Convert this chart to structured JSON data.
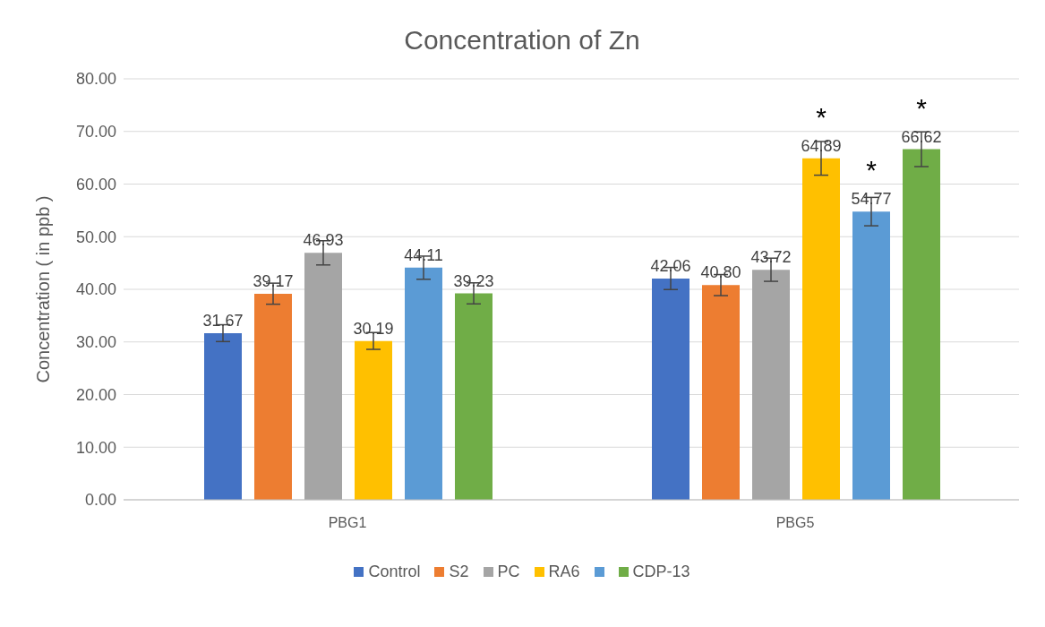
{
  "chart_data": {
    "type": "bar",
    "title": "Concentration of Zn",
    "ylabel": "Concentration ( in ppb )",
    "categories": [
      "PBG1",
      "PBG5"
    ],
    "series": [
      {
        "name": "Control",
        "color": "#4472c4",
        "values": [
          31.67,
          42.06
        ],
        "errors": [
          1.6,
          2.1
        ],
        "value_labels": [
          "31.67",
          "42.06"
        ]
      },
      {
        "name": "S2",
        "color": "#ed7d31",
        "values": [
          39.17,
          40.8
        ],
        "errors": [
          2.0,
          2.0
        ],
        "value_labels": [
          "39.17",
          "40.80"
        ]
      },
      {
        "name": "PC",
        "color": "#a5a5a5",
        "values": [
          46.93,
          43.72
        ],
        "errors": [
          2.3,
          2.2
        ],
        "value_labels": [
          "46.93",
          "43.72"
        ]
      },
      {
        "name": "RA6",
        "color": "#ffc000",
        "values": [
          30.19,
          64.89
        ],
        "errors": [
          1.6,
          3.2
        ],
        "value_labels": [
          "30.19",
          "64.89"
        ]
      },
      {
        "color": "#5b9bd5",
        "values": [
          44.11,
          54.77
        ],
        "errors": [
          2.2,
          2.7
        ],
        "value_labels": [
          "44.11",
          "54.77"
        ]
      },
      {
        "name": "CDP-13",
        "color": "#70ad47",
        "values": [
          39.23,
          66.62
        ],
        "errors": [
          2.0,
          3.3
        ],
        "value_labels": [
          "39.23",
          "66.62"
        ]
      }
    ],
    "ylim": [
      0,
      80
    ],
    "yticks": [
      {
        "value": 0,
        "label": "0.00"
      },
      {
        "value": 10,
        "label": "10.00"
      },
      {
        "value": 20,
        "label": "20.00"
      },
      {
        "value": 30,
        "label": "30.00"
      },
      {
        "value": 40,
        "label": "40.00"
      },
      {
        "value": 50,
        "label": "50.00"
      },
      {
        "value": 60,
        "label": "60.00"
      },
      {
        "value": 70,
        "label": "70.00"
      },
      {
        "value": 80,
        "label": "80.00"
      }
    ],
    "annotations": [
      "*",
      "*",
      "*"
    ],
    "grid": "y",
    "legend": "bottom"
  }
}
